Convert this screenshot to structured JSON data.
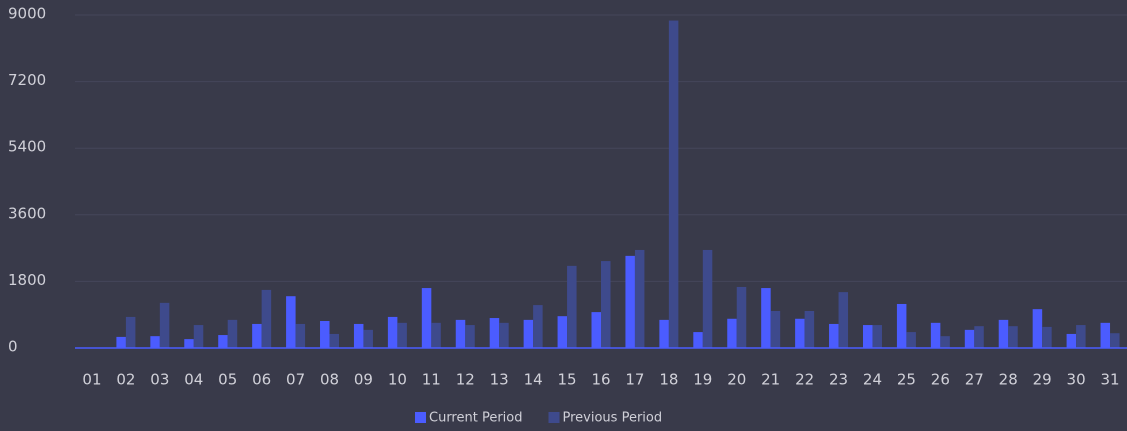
{
  "chart_data": {
    "type": "bar",
    "categories": [
      "01",
      "02",
      "03",
      "04",
      "05",
      "06",
      "07",
      "08",
      "09",
      "10",
      "11",
      "12",
      "13",
      "14",
      "15",
      "16",
      "17",
      "18",
      "19",
      "20",
      "21",
      "22",
      "23",
      "24",
      "25",
      "26",
      "27",
      "28",
      "29",
      "30",
      "31"
    ],
    "series": [
      {
        "name": "Current Period",
        "color": "#4b5cff",
        "values": [
          0,
          300,
          320,
          240,
          350,
          650,
          1400,
          730,
          650,
          840,
          1620,
          760,
          810,
          760,
          860,
          970,
          2490,
          760,
          430,
          790,
          1620,
          790,
          650,
          620,
          1190,
          680,
          490,
          760,
          1050,
          380,
          680
        ]
      },
      {
        "name": "Previous Period",
        "color": "#3e4a8c",
        "values": [
          0,
          840,
          1220,
          620,
          760,
          1570,
          650,
          380,
          490,
          680,
          680,
          620,
          680,
          1160,
          2220,
          2350,
          2650,
          8850,
          2650,
          1650,
          1000,
          1000,
          1510,
          620,
          430,
          320,
          590,
          590,
          570,
          620,
          400
        ]
      }
    ],
    "ylim": [
      0,
      9000
    ],
    "yticks": [
      0,
      1800,
      3600,
      5400,
      7200,
      9000
    ],
    "grid": true,
    "legend": "bottom"
  }
}
